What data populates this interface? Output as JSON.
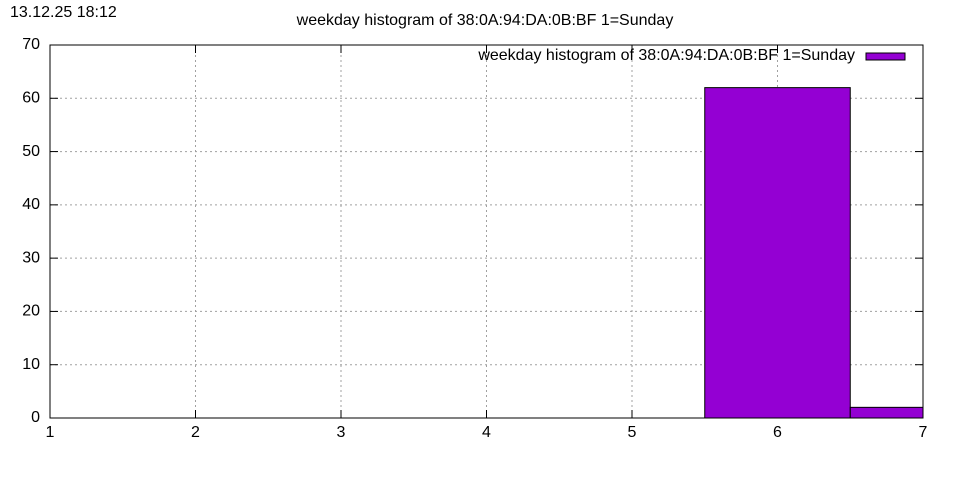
{
  "chart_data": {
    "type": "bar",
    "timestamp": "13.12.25 18:12",
    "title": "weekday histogram of 38:0A:94:DA:0B:BF 1=Sunday",
    "x": [
      6,
      7
    ],
    "series": [
      {
        "name": "weekday histogram of 38:0A:94:DA:0B:BF 1=Sunday",
        "color": "#9400d3",
        "values": [
          62,
          2
        ]
      }
    ],
    "xlim": [
      1,
      7
    ],
    "xticks": [
      1,
      2,
      3,
      4,
      5,
      6,
      7
    ],
    "ylim": [
      0,
      70
    ],
    "yticks": [
      0,
      10,
      20,
      30,
      40,
      50,
      60,
      70
    ],
    "grid": true,
    "legend": "top-right"
  }
}
